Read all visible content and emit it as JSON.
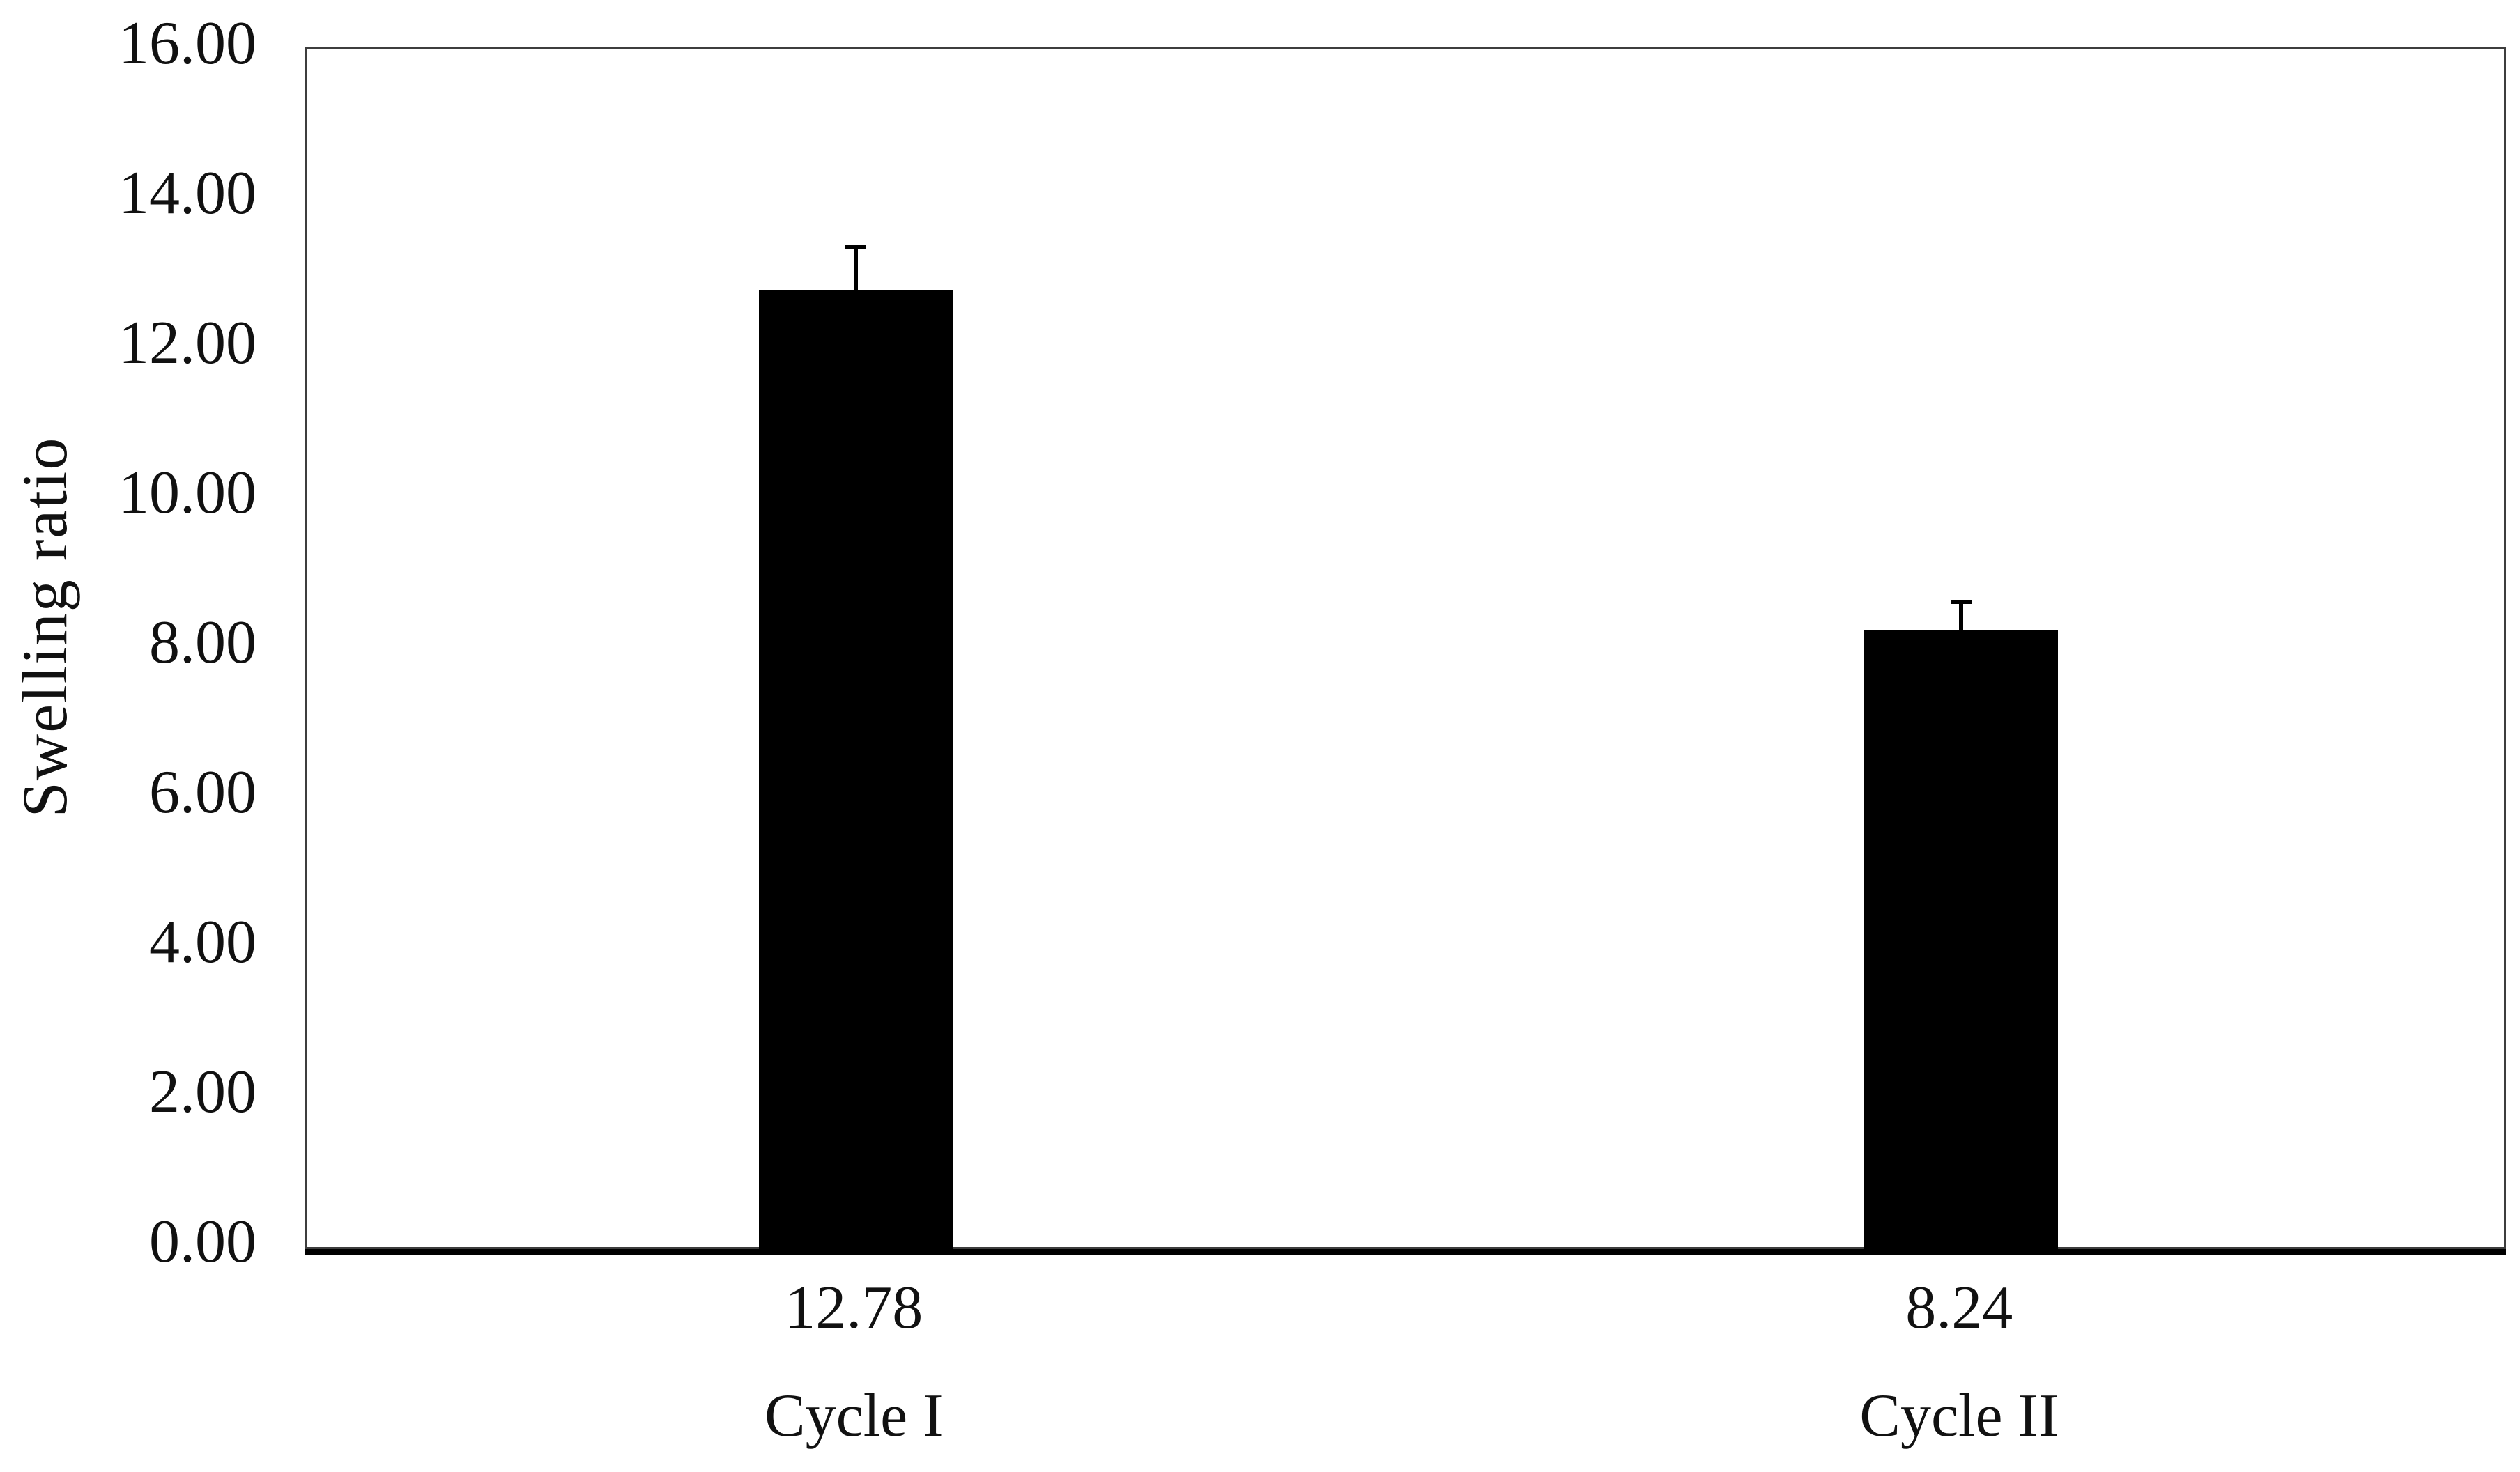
{
  "chart_data": {
    "type": "bar",
    "title": "",
    "ylabel": "Swelling ratio",
    "xlabel": "",
    "categories": [
      "Cycle I",
      "Cycle II"
    ],
    "values": [
      12.78,
      8.24
    ],
    "value_labels": [
      "12.78",
      "8.24"
    ],
    "errors_plus": [
      0.6,
      0.4
    ],
    "ylim": [
      0,
      16
    ],
    "y_tick_step": 2,
    "y_tick_labels": [
      "0.00",
      "2.00",
      "4.00",
      "6.00",
      "8.00",
      "10.00",
      "12.00",
      "14.00",
      "16.00"
    ],
    "grid": false,
    "legend_position": "none",
    "bar_color": "#000000",
    "frame_color": "#3d3d3d",
    "axis_line_color": "#000000",
    "text_color": "#111111",
    "background": "#ffffff"
  }
}
